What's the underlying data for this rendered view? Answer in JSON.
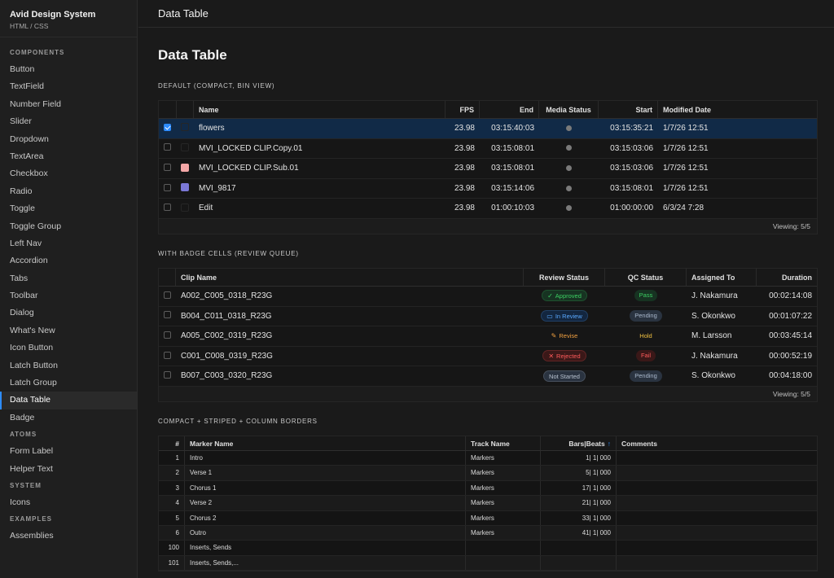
{
  "app": {
    "title": "Avid Design System",
    "subtitle": "HTML / CSS"
  },
  "sidebar": {
    "sections": [
      {
        "label": "COMPONENTS",
        "items": [
          "Button",
          "TextField",
          "Number Field",
          "Slider",
          "Dropdown",
          "TextArea",
          "Checkbox",
          "Radio",
          "Toggle",
          "Toggle Group",
          "Left Nav",
          "Accordion",
          "Tabs",
          "Toolbar",
          "Dialog",
          "What's New",
          "Icon Button",
          "Latch Button",
          "Latch Group",
          "Data Table",
          "Badge"
        ]
      },
      {
        "label": "ATOMS",
        "items": [
          "Form Label",
          "Helper Text"
        ]
      },
      {
        "label": "SYSTEM",
        "items": [
          "Icons"
        ]
      },
      {
        "label": "EXAMPLES",
        "items": [
          "Assemblies"
        ]
      }
    ],
    "active": "Data Table"
  },
  "topbar": {
    "title": "Data Table"
  },
  "page": {
    "title": "Data Table"
  },
  "colors": {
    "accent": "#2d8cff",
    "selected_row": "#112a47",
    "swatch_pink": "#f4a7a7",
    "swatch_purple": "#7b78d6"
  },
  "table1": {
    "label": "DEFAULT (COMPACT, BIN VIEW)",
    "headers": {
      "name": "Name",
      "fps": "FPS",
      "end": "End",
      "media": "Media Status",
      "start": "Start",
      "modified": "Modified Date"
    },
    "rows": [
      {
        "checked": true,
        "swatch": "",
        "name": "flowers",
        "fps": "23.98",
        "end": "03:15:40:03",
        "start": "03:15:35:21",
        "modified": "1/7/26 12:51",
        "selected": true
      },
      {
        "checked": false,
        "swatch": "",
        "name": "MVI_LOCKED CLIP.Copy.01",
        "fps": "23.98",
        "end": "03:15:08:01",
        "start": "03:15:03:06",
        "modified": "1/7/26 12:51"
      },
      {
        "checked": false,
        "swatch": "#f4a7a7",
        "name": "MVI_LOCKED CLIP.Sub.01",
        "fps": "23.98",
        "end": "03:15:08:01",
        "start": "03:15:03:06",
        "modified": "1/7/26 12:51"
      },
      {
        "checked": false,
        "swatch": "#7b78d6",
        "name": "MVI_9817",
        "fps": "23.98",
        "end": "03:15:14:06",
        "start": "03:15:08:01",
        "modified": "1/7/26 12:51"
      },
      {
        "checked": false,
        "swatch": "",
        "name": "Edit",
        "fps": "23.98",
        "end": "01:00:10:03",
        "start": "01:00:00:00",
        "modified": "6/3/24 7:28"
      }
    ],
    "footer": "Viewing: 5/5"
  },
  "table2": {
    "label": "WITH BADGE CELLS (REVIEW QUEUE)",
    "headers": {
      "clip": "Clip Name",
      "review": "Review Status",
      "qc": "QC Status",
      "assigned": "Assigned To",
      "duration": "Duration"
    },
    "rows": [
      {
        "clip": "A002_C005_0318_R23G",
        "review": "Approved",
        "review_icon": "check-circle-icon",
        "review_color": "#3ccf62",
        "review_bg": "#173322",
        "qc": "Pass",
        "qc_color": "#3ccf62",
        "qc_bg": "#173322",
        "assigned": "J. Nakamura",
        "duration": "00:02:14:08"
      },
      {
        "clip": "B004_C011_0318_R23G",
        "review": "In Review",
        "review_icon": "monitor-icon",
        "review_color": "#5aa9ff",
        "review_bg": "#13263f",
        "qc": "Pending",
        "qc_color": "#a9b8cc",
        "qc_bg": "#2a3340",
        "assigned": "S. Okonkwo",
        "duration": "00:01:07:22"
      },
      {
        "clip": "A005_C002_0319_R23G",
        "review": "Revise",
        "review_icon": "pencil-icon",
        "review_color": "#f0a040",
        "review_bg": "transparent",
        "qc": "Hold",
        "qc_color": "#f0c040",
        "qc_bg": "transparent",
        "assigned": "M. Larsson",
        "duration": "00:03:45:14"
      },
      {
        "clip": "C001_C008_0319_R23G",
        "review": "Rejected",
        "review_icon": "x-circle-icon",
        "review_color": "#ff5a5a",
        "review_bg": "#3a1818",
        "qc": "Fail",
        "qc_color": "#ff5a5a",
        "qc_bg": "#3a1818",
        "assigned": "J. Nakamura",
        "duration": "00:00:52:19"
      },
      {
        "clip": "B007_C003_0320_R23G",
        "review": "Not Started",
        "review_icon": "",
        "review_color": "#b8c2cf",
        "review_bg": "#2a3340",
        "qc": "Pending",
        "qc_color": "#a9b8cc",
        "qc_bg": "#2a3340",
        "assigned": "S. Okonkwo",
        "duration": "00:04:18:00"
      }
    ],
    "footer": "Viewing: 5/5"
  },
  "table3": {
    "label": "COMPACT + STRIPED + COLUMN BORDERS",
    "headers": {
      "num": "#",
      "marker": "Marker Name",
      "track": "Track Name",
      "bars": "Bars|Beats",
      "comments": "Comments"
    },
    "rows": [
      {
        "num": "1",
        "marker": "Intro",
        "track": "Markers",
        "bars": "1| 1| 000",
        "comments": ""
      },
      {
        "num": "2",
        "marker": "Verse 1",
        "track": "Markers",
        "bars": "5| 1| 000",
        "comments": ""
      },
      {
        "num": "3",
        "marker": "Chorus 1",
        "track": "Markers",
        "bars": "17| 1| 000",
        "comments": ""
      },
      {
        "num": "4",
        "marker": "Verse 2",
        "track": "Markers",
        "bars": "21| 1| 000",
        "comments": ""
      },
      {
        "num": "5",
        "marker": "Chorus 2",
        "track": "Markers",
        "bars": "33| 1| 000",
        "comments": ""
      },
      {
        "num": "6",
        "marker": "Outro",
        "track": "Markers",
        "bars": "41| 1| 000",
        "comments": ""
      },
      {
        "num": "100",
        "marker": "Inserts, Sends",
        "track": "",
        "bars": "",
        "comments": ""
      },
      {
        "num": "101",
        "marker": "Inserts, Sends,...",
        "track": "",
        "bars": "",
        "comments": ""
      }
    ]
  }
}
